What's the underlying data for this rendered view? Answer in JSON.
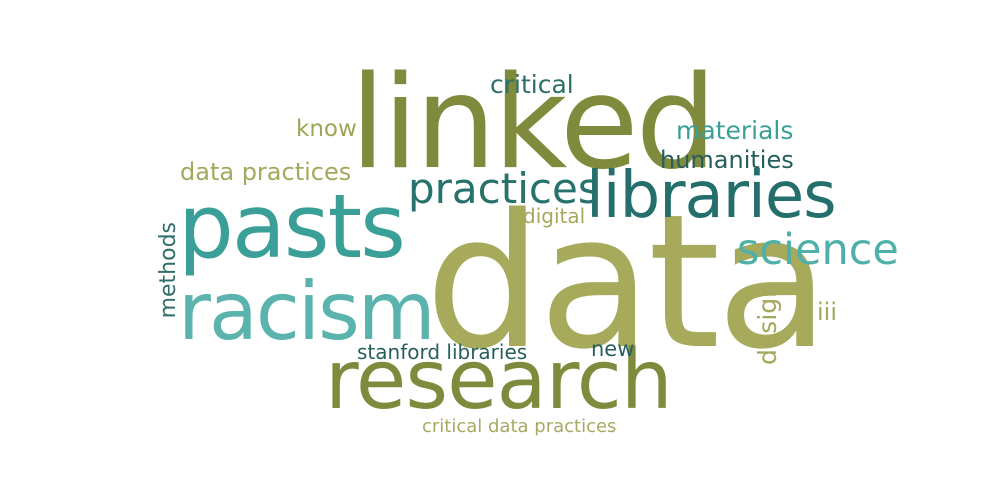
{
  "words": {
    "data": {
      "text": "data",
      "color": "#a6aa5a"
    },
    "linked": {
      "text": "linked",
      "color": "#7f8a3c"
    },
    "research": {
      "text": "research",
      "color": "#808a3d"
    },
    "pasts": {
      "text": "pasts",
      "color": "#3a9f96"
    },
    "racism": {
      "text": "racism",
      "color": "#5ab3ac"
    },
    "libraries": {
      "text": "libraries",
      "color": "#246e6c"
    },
    "practices": {
      "text": "practices",
      "color": "#27726d"
    },
    "science": {
      "text": "science",
      "color": "#4fb0a9"
    },
    "critical": {
      "text": "critical",
      "color": "#2b6f69"
    },
    "know": {
      "text": "know",
      "color": "#9ea554"
    },
    "materials": {
      "text": "materials",
      "color": "#3a9f96"
    },
    "humanities": {
      "text": "humanities",
      "color": "#255e5a"
    },
    "data_practices": {
      "text": "data practices",
      "color": "#a3a95c"
    },
    "digital": {
      "text": "digital",
      "color": "#a4a95e"
    },
    "methods": {
      "text": "methods",
      "color": "#2f6e6b"
    },
    "design": {
      "text": "design",
      "color": "#a4a75c"
    },
    "iii": {
      "text": "iii",
      "color": "#a4a75c"
    },
    "new": {
      "text": "new",
      "color": "#285f5c"
    },
    "stanford_libraries": {
      "text": "stanford libraries",
      "color": "#285f5c"
    },
    "critical_data_practices": {
      "text": "critical data practices",
      "color": "#a7a962"
    }
  }
}
